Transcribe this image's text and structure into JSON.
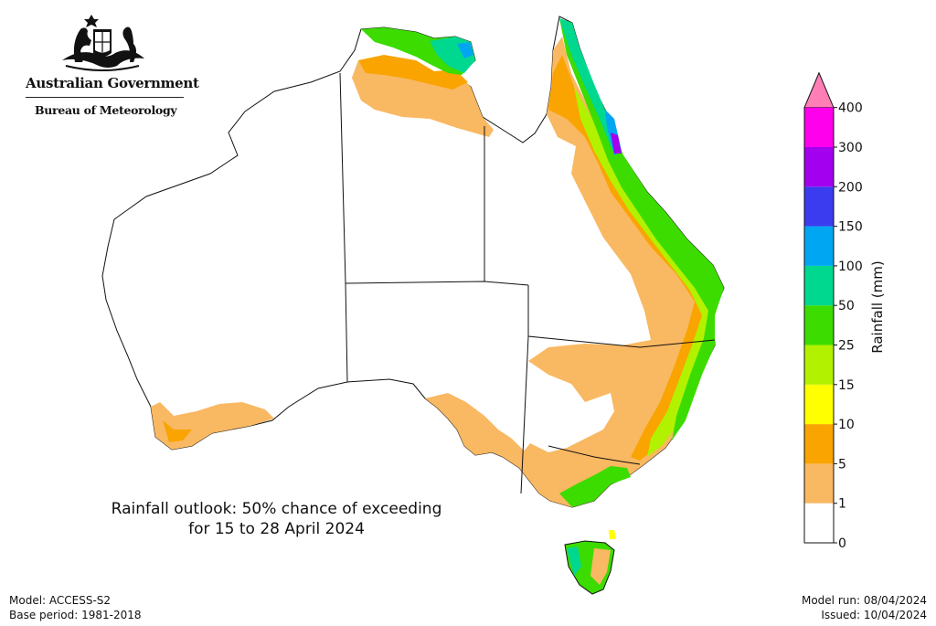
{
  "header": {
    "org_primary": "Australian Government",
    "org_secondary": "Bureau of Meteorology"
  },
  "caption": {
    "line1": "Rainfall outlook: 50% chance of exceeding",
    "line2": "for 15 to 28 April 2024"
  },
  "footer": {
    "model": "Model: ACCESS-S2",
    "base_period": "Base period: 1981-2018",
    "model_run": "Model run: 08/04/2024",
    "issued": "Issued: 10/04/2024"
  },
  "legend": {
    "title": "Rainfall (mm)",
    "ticks": [
      "0",
      "1",
      "5",
      "10",
      "15",
      "25",
      "50",
      "100",
      "150",
      "200",
      "300",
      "400"
    ],
    "colors": [
      "#ffffff",
      "#f9b862",
      "#f9a400",
      "#ffff00",
      "#b2f200",
      "#3cdc00",
      "#00d890",
      "#00a6f2",
      "#3b3cf0",
      "#a400f0",
      "#ff00ec"
    ],
    "overflow_color": "#ff7eb5"
  },
  "map": {
    "palette": {
      "outline": "#111111",
      "lt1": "#ffffff",
      "r1_5": "#f9b862",
      "r5_10": "#f9a400",
      "r10_15": "#ffff00",
      "r15_25": "#b2f200",
      "r25_50": "#3cdc00",
      "r50_100": "#00d890",
      "r100_150": "#00a6f2",
      "r150_200": "#3b3cf0",
      "r200_300": "#a400f0"
    }
  }
}
